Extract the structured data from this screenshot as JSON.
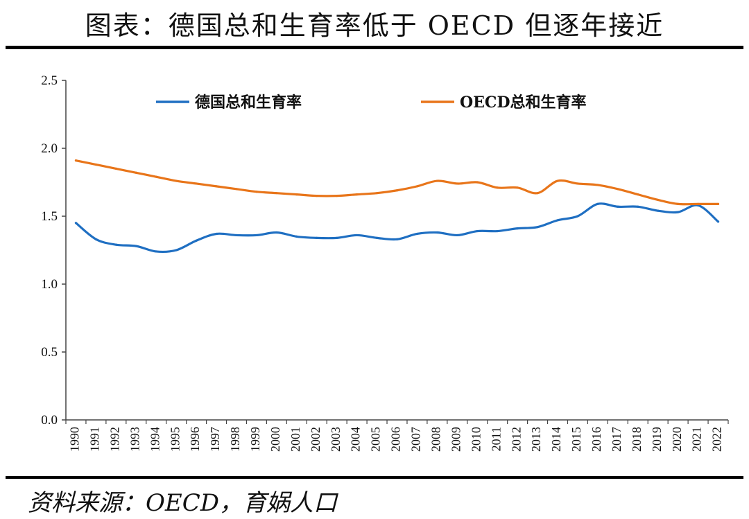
{
  "title": "图表：德国总和生育率低于 OECD 但逐年接近",
  "source": "资料来源：OECD，育娲人口",
  "colors": {
    "germany": "#1f6fc2",
    "oecd": "#e8751a"
  },
  "chart_data": {
    "type": "line",
    "title": "德国总和生育率低于 OECD 但逐年接近",
    "xlabel": "",
    "ylabel": "",
    "ylim": [
      0,
      2.5
    ],
    "yticks": [
      "0.0",
      "0.5",
      "1.0",
      "1.5",
      "2.0",
      "2.5"
    ],
    "legend_position": "top",
    "categories": [
      "1990",
      "1991",
      "1992",
      "1993",
      "1994",
      "1995",
      "1996",
      "1997",
      "1998",
      "1999",
      "2000",
      "2001",
      "2002",
      "2003",
      "2004",
      "2005",
      "2006",
      "2007",
      "2008",
      "2009",
      "2010",
      "2011",
      "2012",
      "2013",
      "2014",
      "2015",
      "2016",
      "2017",
      "2018",
      "2019",
      "2020",
      "2021",
      "2022"
    ],
    "series": [
      {
        "name": "德国总和生育率",
        "color": "#1f6fc2",
        "values": [
          1.45,
          1.33,
          1.29,
          1.28,
          1.24,
          1.25,
          1.32,
          1.37,
          1.36,
          1.36,
          1.38,
          1.35,
          1.34,
          1.34,
          1.36,
          1.34,
          1.33,
          1.37,
          1.38,
          1.36,
          1.39,
          1.39,
          1.41,
          1.42,
          1.47,
          1.5,
          1.59,
          1.57,
          1.57,
          1.54,
          1.53,
          1.58,
          1.46
        ]
      },
      {
        "name": "OECD总和生育率",
        "color": "#e8751a",
        "values": [
          1.91,
          1.88,
          1.85,
          1.82,
          1.79,
          1.76,
          1.74,
          1.72,
          1.7,
          1.68,
          1.67,
          1.66,
          1.65,
          1.65,
          1.66,
          1.67,
          1.69,
          1.72,
          1.76,
          1.74,
          1.75,
          1.71,
          1.71,
          1.67,
          1.76,
          1.74,
          1.73,
          1.7,
          1.66,
          1.62,
          1.59,
          1.59,
          1.59
        ]
      }
    ]
  }
}
